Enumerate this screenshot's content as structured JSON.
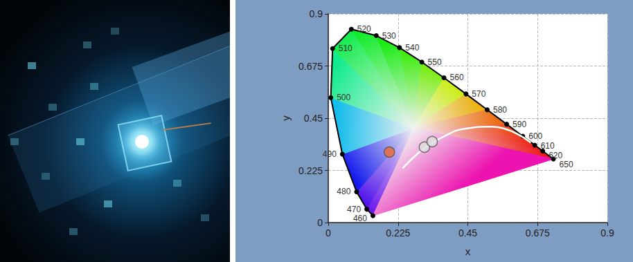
{
  "chart_data": {
    "type": "scatter",
    "xlabel": "x",
    "ylabel": "y",
    "xlim": [
      0,
      0.9
    ],
    "ylim": [
      0,
      0.9
    ],
    "xticks": [
      0,
      0.225,
      0.45,
      0.675,
      0.9
    ],
    "yticks": [
      0,
      0.225,
      0.45,
      0.675,
      0.9
    ],
    "grid": true,
    "series": [
      {
        "type": "area",
        "color": "#000000",
        "marker": "circle",
        "x": [
          0.144,
          0.1241,
          0.0913,
          0.0454,
          0.0082,
          0.0139,
          0.0743,
          0.1547,
          0.2296,
          0.3016,
          0.3731,
          0.4441,
          0.5125,
          0.5752,
          0.627,
          0.6658,
          0.6915,
          0.726
        ],
        "values": [
          0.0297,
          0.0578,
          0.1327,
          0.295,
          0.5384,
          0.7502,
          0.8338,
          0.8059,
          0.7543,
          0.6923,
          0.6245,
          0.5547,
          0.4866,
          0.4242,
          0.3725,
          0.334,
          0.3083,
          0.274
        ],
        "labels": [
          460,
          470,
          480,
          490,
          500,
          510,
          520,
          530,
          540,
          550,
          560,
          570,
          580,
          590,
          600,
          610,
          620,
          650
        ]
      },
      {
        "type": "line",
        "color": "#ffffff",
        "line_style": "solid",
        "x": [
          0.2399,
          0.2807,
          0.3135,
          0.3805,
          0.4369,
          0.5267,
          0.6528
        ],
        "values": [
          0.2342,
          0.2884,
          0.3237,
          0.3768,
          0.4041,
          0.4133,
          0.3444
        ]
      },
      {
        "type": "scatter",
        "color": "#f26a2e",
        "marker": "circle",
        "x": [
          0.197
        ],
        "values": [
          0.304
        ]
      },
      {
        "type": "scatter",
        "color": "#e0e0e0",
        "marker": "circle",
        "x": [
          0.31,
          0.335
        ],
        "values": [
          0.325,
          0.349
        ]
      }
    ]
  }
}
